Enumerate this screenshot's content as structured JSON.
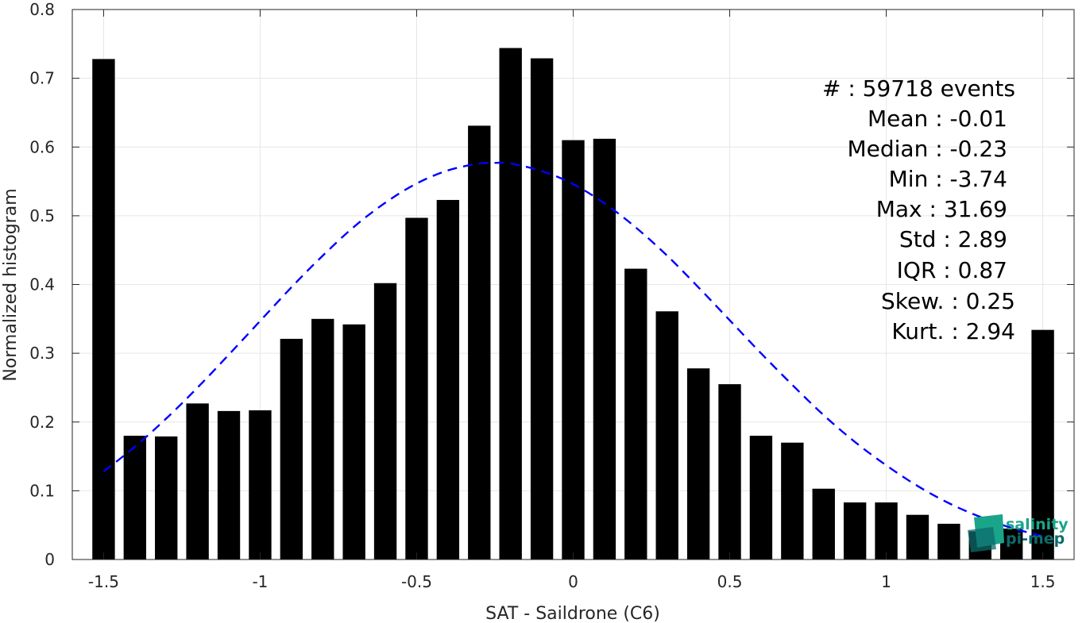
{
  "chart_data": {
    "type": "bar",
    "xlabel": "SAT - Saildrone (C6)",
    "ylabel": "Normalized histogram",
    "xlim": [
      -1.6,
      1.6
    ],
    "ylim": [
      0,
      0.8
    ],
    "xticks": [
      "-1.5",
      "-1",
      "-0.5",
      "0",
      "0.5",
      "1",
      "1.5"
    ],
    "yticks": [
      "0",
      "0.1",
      "0.2",
      "0.3",
      "0.4",
      "0.5",
      "0.6",
      "0.7",
      "0.8"
    ],
    "grid": true,
    "bar_color": "#000000",
    "fit_color": "#0000ff",
    "bars": {
      "x": [
        -1.5,
        -1.4,
        -1.3,
        -1.2,
        -1.1,
        -1.0,
        -0.9,
        -0.8,
        -0.7,
        -0.6,
        -0.5,
        -0.4,
        -0.3,
        -0.2,
        -0.1,
        0.0,
        0.1,
        0.2,
        0.3,
        0.4,
        0.5,
        0.6,
        0.7,
        0.8,
        0.9,
        1.0,
        1.1,
        1.2,
        1.3,
        1.4,
        1.5
      ],
      "values": [
        0.728,
        0.18,
        0.179,
        0.227,
        0.216,
        0.217,
        0.321,
        0.35,
        0.342,
        0.402,
        0.497,
        0.523,
        0.631,
        0.744,
        0.729,
        0.61,
        0.612,
        0.423,
        0.361,
        0.278,
        0.255,
        0.18,
        0.17,
        0.103,
        0.083,
        0.083,
        0.065,
        0.052,
        0.041,
        0.045,
        0.334
      ]
    },
    "fit": {
      "style": "dashed",
      "x": [
        -1.5,
        -1.4,
        -1.3,
        -1.2,
        -1.1,
        -1.0,
        -0.9,
        -0.8,
        -0.7,
        -0.6,
        -0.5,
        -0.4,
        -0.3,
        -0.25,
        -0.2,
        -0.1,
        0.0,
        0.1,
        0.2,
        0.3,
        0.4,
        0.5,
        0.6,
        0.7,
        0.8,
        0.9,
        1.0,
        1.1,
        1.2,
        1.3,
        1.4,
        1.5
      ],
      "y": [
        0.128,
        0.164,
        0.205,
        0.25,
        0.298,
        0.347,
        0.396,
        0.442,
        0.484,
        0.519,
        0.547,
        0.566,
        0.576,
        0.577,
        0.576,
        0.565,
        0.546,
        0.518,
        0.483,
        0.442,
        0.396,
        0.348,
        0.3,
        0.254,
        0.21,
        0.171,
        0.137,
        0.107,
        0.082,
        0.062,
        0.046,
        0.034
      ]
    }
  },
  "stats": {
    "events": "#  : 59718 events",
    "mean": "Mean : -0.01",
    "median": "Median : -0.23",
    "min": "Min : -3.74",
    "max": "Max : 31.69",
    "std": "Std : 2.89",
    "iqr": "IQR : 0.87",
    "skew": "Skew. : 0.25",
    "kurt": "Kurt. : 2.94"
  },
  "logo": {
    "line1": "salinity",
    "line2": "pi-mep",
    "color": "#1aa58a",
    "dark_color": "#0e6b6b"
  }
}
